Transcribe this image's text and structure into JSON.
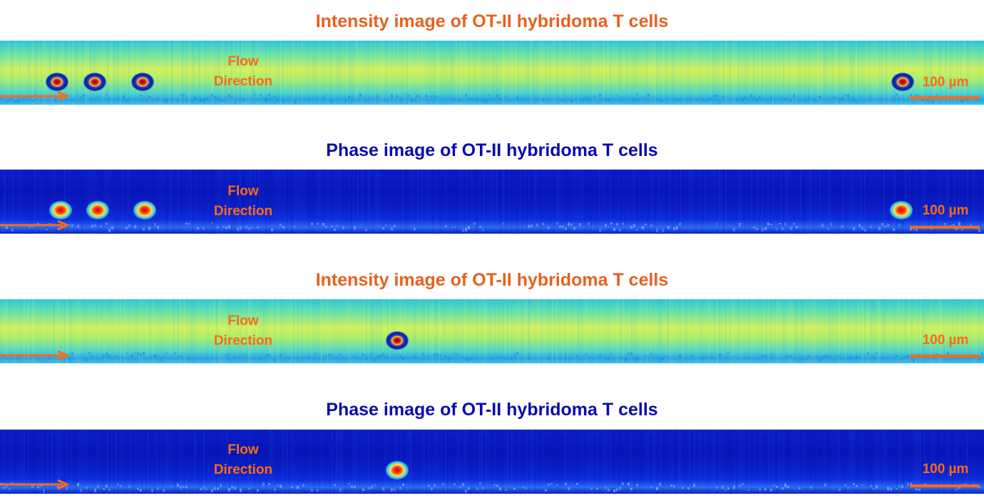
{
  "colors": {
    "intensity_title": "#E8601C",
    "phase_title": "#0A0AB0",
    "annotation": "#FF6A13"
  },
  "panels": [
    {
      "kind": "intensity",
      "title": "Intensity image of OT-II hybridoma T cells",
      "flow_label_line1": "Flow",
      "flow_label_line2": "Direction",
      "scale_label": "100 µm",
      "cell_x_positions": [
        80,
        133,
        200,
        1266
      ]
    },
    {
      "kind": "phase",
      "title": "Phase image of OT-II hybridoma T cells",
      "flow_label_line1": "Flow",
      "flow_label_line2": "Direction",
      "scale_label": "100 µm",
      "cell_x_positions": [
        85,
        137,
        203,
        1264
      ]
    },
    {
      "kind": "intensity",
      "title": "Intensity image of OT-II hybridoma T cells",
      "flow_label_line1": "Flow",
      "flow_label_line2": "Direction",
      "scale_label": "100 µm",
      "cell_x_positions": [
        557
      ]
    },
    {
      "kind": "phase",
      "title": "Phase image of OT-II hybridoma T cells",
      "flow_label_line1": "Flow",
      "flow_label_line2": "Direction",
      "scale_label": "100 µm",
      "cell_x_positions": [
        557
      ]
    }
  ]
}
